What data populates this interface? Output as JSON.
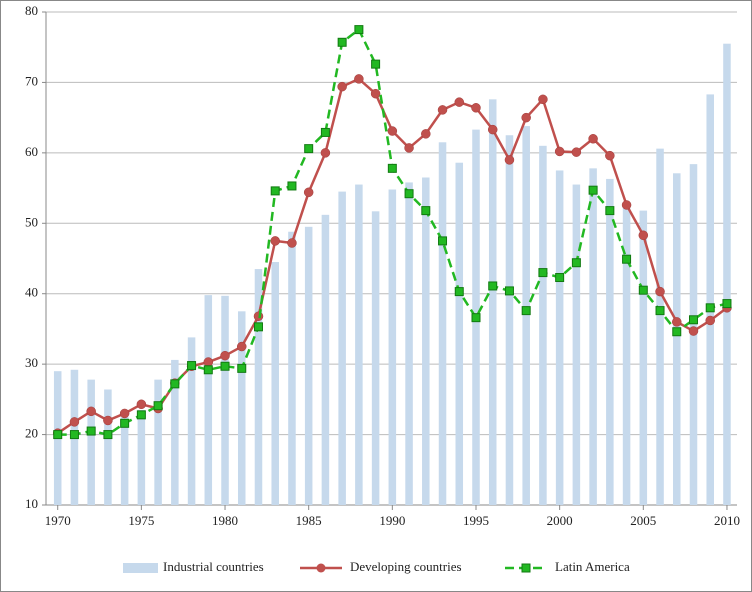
{
  "chart_data": {
    "type": "combo",
    "x": [
      1970,
      1971,
      1972,
      1973,
      1974,
      1975,
      1976,
      1977,
      1978,
      1979,
      1980,
      1981,
      1982,
      1983,
      1984,
      1985,
      1986,
      1987,
      1988,
      1989,
      1990,
      1991,
      1992,
      1993,
      1994,
      1995,
      1996,
      1997,
      1998,
      1999,
      2000,
      2001,
      2002,
      2003,
      2004,
      2005,
      2006,
      2007,
      2008,
      2009,
      2010
    ],
    "xlim": [
      1969.3,
      2010.6
    ],
    "xticks": [
      1970,
      1975,
      1980,
      1985,
      1990,
      1995,
      2000,
      2005,
      2010
    ],
    "ylim": [
      10,
      80
    ],
    "yticks": [
      10,
      20,
      30,
      40,
      50,
      60,
      70,
      80
    ],
    "grid": true,
    "legend": "bottom",
    "series": [
      {
        "name": "Industrial countries",
        "type": "bar",
        "color": "#c6d9ec",
        "values": [
          29,
          29.2,
          27.8,
          26.4,
          22.5,
          23.5,
          27.8,
          30.6,
          33.8,
          39.8,
          39.7,
          37.5,
          43.5,
          44.5,
          48.8,
          49.5,
          51.2,
          54.5,
          55.5,
          51.7,
          54.8,
          55.8,
          56.5,
          61.5,
          58.6,
          63.3,
          67.6,
          62.5,
          63.8,
          61,
          57.5,
          55.5,
          57.8,
          56.3,
          52.5,
          51.8,
          60.6,
          57.1,
          58.4,
          68.3,
          75.5
        ]
      },
      {
        "name": "Developing countries",
        "type": "line",
        "color": "#c0504d",
        "marker": "circle",
        "dashed": false,
        "values": [
          20.2,
          21.8,
          23.3,
          22,
          23,
          24.3,
          23.7,
          27.3,
          29.7,
          30.3,
          31.2,
          32.5,
          36.8,
          47.5,
          47.2,
          54.4,
          60,
          69.4,
          70.5,
          68.4,
          63.1,
          60.7,
          62.7,
          66.1,
          67.2,
          66.4,
          63.3,
          59,
          65,
          67.6,
          60.2,
          60.1,
          62,
          59.6,
          52.6,
          48.3,
          40.3,
          36,
          34.7,
          36.2,
          38
        ]
      },
      {
        "name": "Latin America",
        "type": "line",
        "color": "#22b822",
        "marker": "square",
        "dashed": true,
        "values": [
          20,
          20,
          20.5,
          20,
          21.6,
          22.8,
          24.1,
          27.2,
          29.8,
          29.2,
          29.7,
          29.4,
          35.3,
          54.6,
          55.3,
          60.6,
          62.9,
          75.7,
          77.5,
          72.6,
          57.8,
          54.2,
          51.8,
          47.5,
          40.3,
          36.6,
          41.1,
          40.4,
          37.6,
          43,
          42.3,
          44.4,
          54.7,
          51.8,
          44.9,
          40.5,
          37.6,
          34.6,
          36.3,
          38,
          38.6
        ]
      }
    ]
  }
}
